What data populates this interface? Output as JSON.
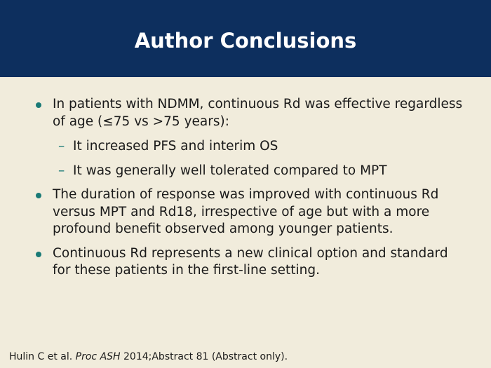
{
  "slide": {
    "title": "Author Conclusions",
    "bullets": [
      {
        "text": "In patients with NDMM, continuous Rd was effective regardless of age (≤75 vs >75 years):",
        "subs": [
          "It increased PFS and interim OS",
          "It was generally well tolerated compared to MPT"
        ]
      },
      {
        "text": "The duration of response was improved with continuous Rd versus MPT and Rd18, irrespective of age but with a more profound benefit observed among younger patients."
      },
      {
        "text": "Continuous Rd represents a new clinical option and standard for these patients in the first-line setting."
      }
    ],
    "sub_marker": "–",
    "footnote": {
      "before": "Hulin C et al. ",
      "italic": "Proc ASH",
      "after": " 2014;Abstract 81 (Abstract only)."
    }
  },
  "colors": {
    "header_bg": "#0d2f5e",
    "body_bg": "#f1ecdc",
    "bullet": "#1a7a76",
    "text": "#1a1a1a"
  }
}
